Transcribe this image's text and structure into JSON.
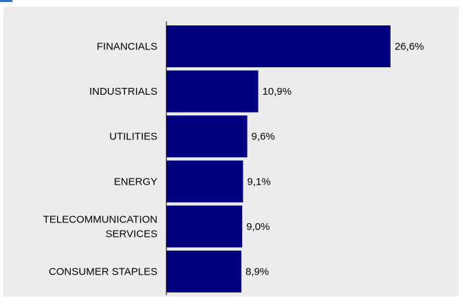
{
  "chart_data": {
    "type": "bar",
    "orientation": "horizontal",
    "categories": [
      "FINANCIALS",
      "INDUSTRIALS",
      "UTILITIES",
      "ENERGY",
      "TELECOMMUNICATION SERVICES",
      "CONSUMER STAPLES"
    ],
    "category_lines": [
      [
        "FINANCIALS"
      ],
      [
        "INDUSTRIALS"
      ],
      [
        "UTILITIES"
      ],
      [
        "ENERGY"
      ],
      [
        "TELECOMMUNICATION",
        "SERVICES"
      ],
      [
        "CONSUMER STAPLES"
      ]
    ],
    "values": [
      26.6,
      10.9,
      9.6,
      9.1,
      9.0,
      8.9
    ],
    "value_labels": [
      "26,6%",
      "10,9%",
      "9,6%",
      "9,1%",
      "9,0%",
      "8,9%"
    ],
    "title": "",
    "xlabel": "",
    "ylabel": "",
    "xlim": [
      0,
      26.6
    ],
    "grid": false,
    "legend": "none",
    "colors": {
      "bar": "#000080",
      "background": "#ececec",
      "axis": "#000000",
      "accent": "#3a6fc4"
    }
  }
}
